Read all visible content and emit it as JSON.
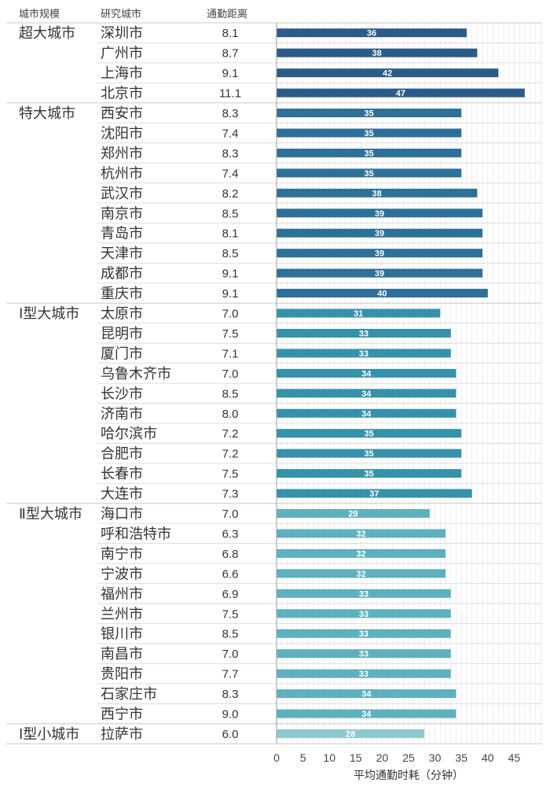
{
  "headers": {
    "scale": "城市规模",
    "city": "研究城市",
    "distance": "通勤距离"
  },
  "colors": {
    "超大城市": "#2b5b88",
    "特大城市": "#2d7098",
    "Ⅰ型大城市": "#3592aa",
    "Ⅱ型大城市": "#5eb0bf",
    "Ⅰ型小城市": "#8cc9cf",
    "grid": "#e4e4e4",
    "axis": "#999999"
  },
  "chart_data": {
    "type": "bar",
    "orientation": "horizontal",
    "xlabel": "平均通勤时耗（分钟）",
    "xlim": [
      0,
      48
    ],
    "xticks": [
      0,
      5,
      10,
      15,
      20,
      25,
      30,
      35,
      40,
      45
    ],
    "groups": [
      {
        "name": "超大城市",
        "rows": [
          {
            "city": "深圳市",
            "distance": "8.1",
            "value": 36
          },
          {
            "city": "广州市",
            "distance": "8.7",
            "value": 38
          },
          {
            "city": "上海市",
            "distance": "9.1",
            "value": 42
          },
          {
            "city": "北京市",
            "distance": "11.1",
            "value": 47
          }
        ]
      },
      {
        "name": "特大城市",
        "rows": [
          {
            "city": "西安市",
            "distance": "8.3",
            "value": 35
          },
          {
            "city": "沈阳市",
            "distance": "7.4",
            "value": 35
          },
          {
            "city": "郑州市",
            "distance": "8.3",
            "value": 35
          },
          {
            "city": "杭州市",
            "distance": "7.4",
            "value": 35
          },
          {
            "city": "武汉市",
            "distance": "8.2",
            "value": 38
          },
          {
            "city": "南京市",
            "distance": "8.5",
            "value": 39
          },
          {
            "city": "青岛市",
            "distance": "8.1",
            "value": 39
          },
          {
            "city": "天津市",
            "distance": "8.5",
            "value": 39
          },
          {
            "city": "成都市",
            "distance": "9.1",
            "value": 39
          },
          {
            "city": "重庆市",
            "distance": "9.1",
            "value": 40
          }
        ]
      },
      {
        "name": "Ⅰ型大城市",
        "rows": [
          {
            "city": "太原市",
            "distance": "7.0",
            "value": 31
          },
          {
            "city": "昆明市",
            "distance": "7.5",
            "value": 33
          },
          {
            "city": "厦门市",
            "distance": "7.1",
            "value": 33
          },
          {
            "city": "乌鲁木齐市",
            "distance": "7.0",
            "value": 34
          },
          {
            "city": "长沙市",
            "distance": "8.5",
            "value": 34
          },
          {
            "city": "济南市",
            "distance": "8.0",
            "value": 34
          },
          {
            "city": "哈尔滨市",
            "distance": "7.2",
            "value": 35
          },
          {
            "city": "合肥市",
            "distance": "7.2",
            "value": 35
          },
          {
            "city": "长春市",
            "distance": "7.5",
            "value": 35
          },
          {
            "city": "大连市",
            "distance": "7.3",
            "value": 37
          }
        ]
      },
      {
        "name": "Ⅱ型大城市",
        "rows": [
          {
            "city": "海口市",
            "distance": "7.0",
            "value": 29
          },
          {
            "city": "呼和浩特市",
            "distance": "6.3",
            "value": 32
          },
          {
            "city": "南宁市",
            "distance": "6.8",
            "value": 32
          },
          {
            "city": "宁波市",
            "distance": "6.6",
            "value": 32
          },
          {
            "city": "福州市",
            "distance": "6.9",
            "value": 33
          },
          {
            "city": "兰州市",
            "distance": "7.5",
            "value": 33
          },
          {
            "city": "银川市",
            "distance": "8.5",
            "value": 33
          },
          {
            "city": "南昌市",
            "distance": "7.0",
            "value": 33
          },
          {
            "city": "贵阳市",
            "distance": "7.7",
            "value": 33
          },
          {
            "city": "石家庄市",
            "distance": "8.3",
            "value": 34
          },
          {
            "city": "西宁市",
            "distance": "9.0",
            "value": 34
          }
        ]
      },
      {
        "name": "Ⅰ型小城市",
        "rows": [
          {
            "city": "拉萨市",
            "distance": "6.0",
            "value": 28
          }
        ]
      }
    ]
  }
}
